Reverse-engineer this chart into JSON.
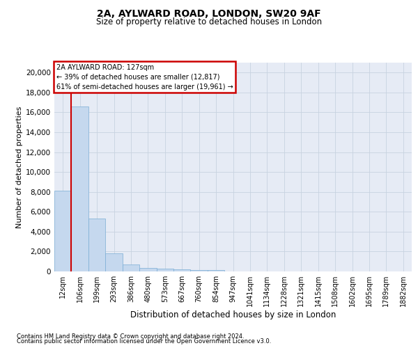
{
  "title_line1": "2A, AYLWARD ROAD, LONDON, SW20 9AF",
  "title_line2": "Size of property relative to detached houses in London",
  "xlabel": "Distribution of detached houses by size in London",
  "ylabel": "Number of detached properties",
  "categories": [
    "12sqm",
    "106sqm",
    "199sqm",
    "293sqm",
    "386sqm",
    "480sqm",
    "573sqm",
    "667sqm",
    "760sqm",
    "854sqm",
    "947sqm",
    "1041sqm",
    "1134sqm",
    "1228sqm",
    "1321sqm",
    "1415sqm",
    "1508sqm",
    "1602sqm",
    "1695sqm",
    "1789sqm",
    "1882sqm"
  ],
  "bar_heights": [
    8100,
    16600,
    5300,
    1850,
    700,
    380,
    280,
    210,
    175,
    130,
    0,
    0,
    0,
    0,
    0,
    0,
    0,
    0,
    0,
    0,
    0
  ],
  "bar_fill_color": "#c5d8ee",
  "bar_edge_color": "#7aadd4",
  "annotation_title": "2A AYLWARD ROAD: 127sqm",
  "annotation_line2": "← 39% of detached houses are smaller (12,817)",
  "annotation_line3": "61% of semi-detached houses are larger (19,961) →",
  "annotation_box_facecolor": "#ffffff",
  "annotation_box_edgecolor": "#cc0000",
  "red_line_x": 0.5,
  "ylim_max": 21000,
  "yticks": [
    0,
    2000,
    4000,
    6000,
    8000,
    10000,
    12000,
    14000,
    16000,
    18000,
    20000
  ],
  "grid_color": "#c8d2e0",
  "axes_bg_color": "#e6ebf5",
  "footer1": "Contains HM Land Registry data © Crown copyright and database right 2024.",
  "footer2": "Contains public sector information licensed under the Open Government Licence v3.0.",
  "title1_fontsize": 10,
  "title2_fontsize": 8.5,
  "ylabel_fontsize": 8,
  "xlabel_fontsize": 8.5,
  "tick_fontsize": 7,
  "annotation_fontsize": 7,
  "footer_fontsize": 6
}
